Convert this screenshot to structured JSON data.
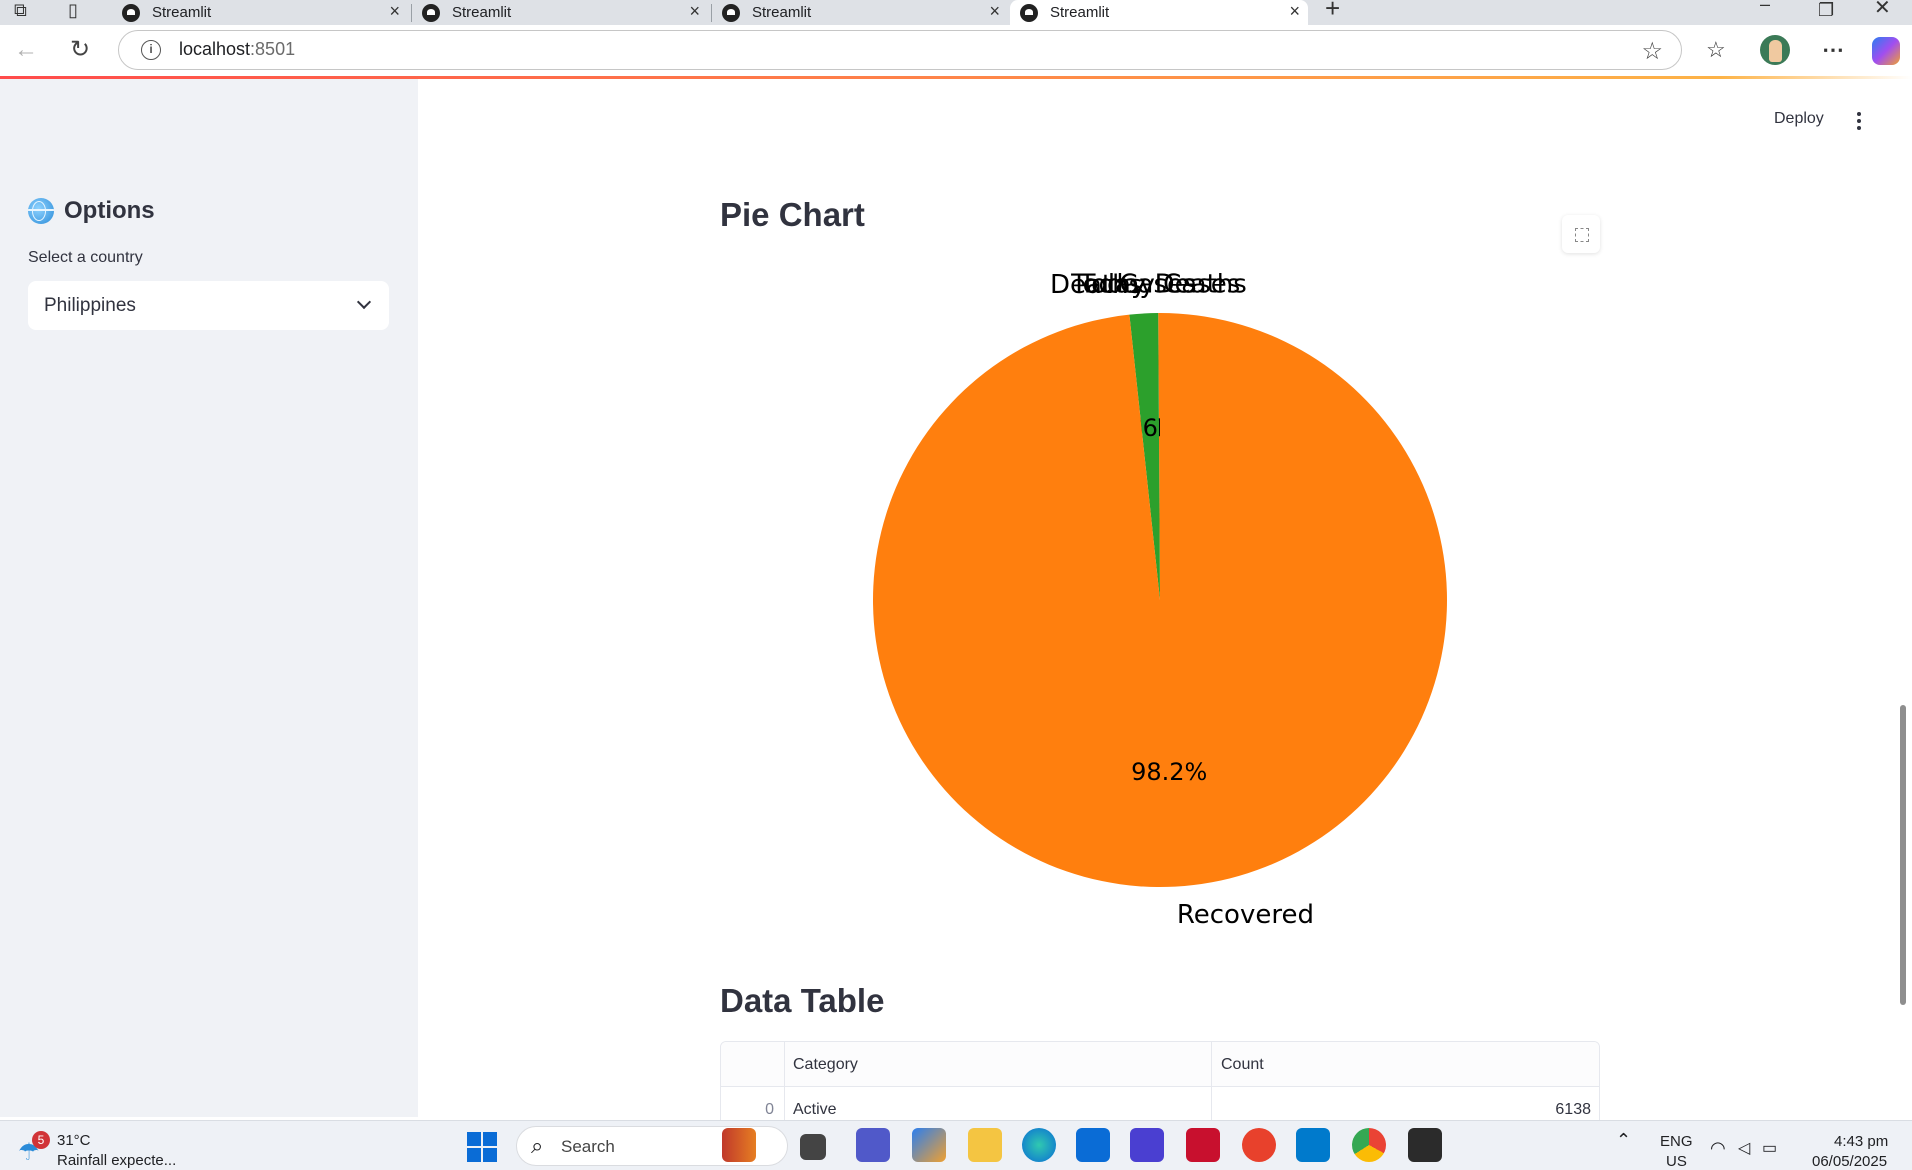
{
  "browser": {
    "tabs": [
      {
        "title": "Streamlit"
      },
      {
        "title": "Streamlit"
      },
      {
        "title": "Streamlit"
      },
      {
        "title": "Streamlit"
      }
    ],
    "url_host": "localhost",
    "url_port": ":8501"
  },
  "sidebar": {
    "title": "Options",
    "select_label": "Select a country",
    "selected_country": "Philippines"
  },
  "header": {
    "deploy_label": "Deploy"
  },
  "main": {
    "pie_heading": "Pie Chart",
    "table_heading": "Data Table"
  },
  "chart_data": {
    "type": "pie",
    "title": "",
    "slices": [
      {
        "label": "Today Cases",
        "percent": 0.0,
        "color": "#1f77b4"
      },
      {
        "label": "Today Deaths",
        "percent": 0.1,
        "color": "#ff7f0e"
      },
      {
        "label": "Cases",
        "percent": 0.0,
        "color": "#2ca02c"
      },
      {
        "label": "Deaths",
        "percent": 1.6,
        "color": "#2ca02c"
      },
      {
        "label": "Recovered",
        "percent": 98.2,
        "color": "#ff7f0e"
      }
    ]
  },
  "table": {
    "columns": [
      "",
      "Category",
      "Count"
    ],
    "rows": [
      {
        "index": "0",
        "category": "Active",
        "count": "6138"
      }
    ]
  },
  "taskbar": {
    "weather_badge": "5",
    "weather_temp": "31°C",
    "weather_summary": "Rainfall expecte...",
    "search_label": "Search",
    "lang_top": "ENG",
    "lang_bottom": "US",
    "time": "4:43 pm",
    "date": "06/05/2025"
  }
}
